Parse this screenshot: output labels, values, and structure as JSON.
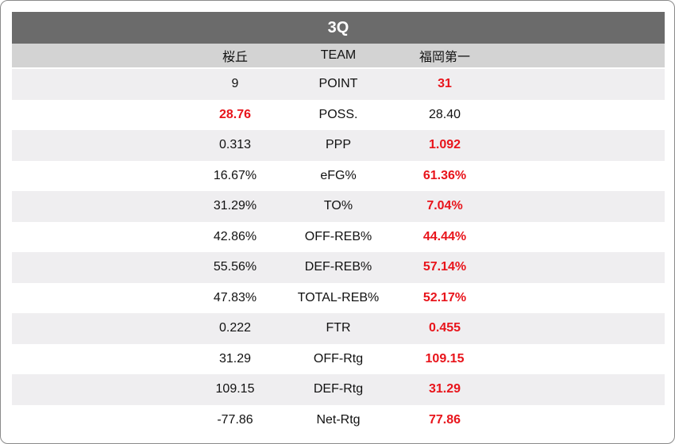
{
  "title": "3Q",
  "columns": {
    "left": "桜丘",
    "middle": "TEAM",
    "right": "福岡第一"
  },
  "colors": {
    "highlight": "#e8141b",
    "title_bg": "#6b6b6b",
    "header_bg": "#d3d3d3",
    "row_shade": "#efeef0"
  },
  "rows": [
    {
      "label": "POINT",
      "left": "9",
      "right": "31",
      "highlight": "right"
    },
    {
      "label": "POSS.",
      "left": "28.76",
      "right": "28.40",
      "highlight": "left"
    },
    {
      "label": "PPP",
      "left": "0.313",
      "right": "1.092",
      "highlight": "right"
    },
    {
      "label": "eFG%",
      "left": "16.67%",
      "right": "61.36%",
      "highlight": "right"
    },
    {
      "label": "TO%",
      "left": "31.29%",
      "right": "7.04%",
      "highlight": "right"
    },
    {
      "label": "OFF-REB%",
      "left": "42.86%",
      "right": "44.44%",
      "highlight": "right"
    },
    {
      "label": "DEF-REB%",
      "left": "55.56%",
      "right": "57.14%",
      "highlight": "right"
    },
    {
      "label": "TOTAL-REB%",
      "left": "47.83%",
      "right": "52.17%",
      "highlight": "right"
    },
    {
      "label": "FTR",
      "left": "0.222",
      "right": "0.455",
      "highlight": "right"
    },
    {
      "label": "OFF-Rtg",
      "left": "31.29",
      "right": "109.15",
      "highlight": "right"
    },
    {
      "label": "DEF-Rtg",
      "left": "109.15",
      "right": "31.29",
      "highlight": "right"
    },
    {
      "label": "Net-Rtg",
      "left": "-77.86",
      "right": "77.86",
      "highlight": "right"
    }
  ]
}
